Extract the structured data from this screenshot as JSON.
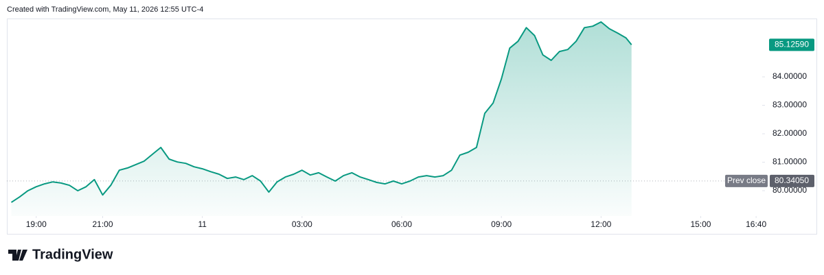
{
  "header_note": "Created with TradingView.com, May 11, 2026 12:55 UTC-4",
  "logo_text": "TradingView",
  "chart_data": {
    "type": "area",
    "color": "#089981",
    "x": [
      "18:15",
      "18:30",
      "18:45",
      "19:00",
      "19:15",
      "19:30",
      "19:45",
      "20:00",
      "20:15",
      "20:30",
      "20:45",
      "21:00",
      "21:15",
      "21:30",
      "21:45",
      "22:00",
      "22:15",
      "22:30",
      "22:45",
      "23:00",
      "23:15",
      "23:30",
      "23:45",
      "00:00",
      "00:15",
      "00:30",
      "00:45",
      "01:00",
      "01:15",
      "01:30",
      "01:45",
      "02:00",
      "02:15",
      "02:30",
      "02:45",
      "03:00",
      "03:15",
      "03:30",
      "03:45",
      "04:00",
      "04:15",
      "04:30",
      "04:45",
      "05:00",
      "05:15",
      "05:30",
      "05:45",
      "06:00",
      "06:15",
      "06:30",
      "06:45",
      "07:00",
      "07:15",
      "07:30",
      "07:45",
      "08:00",
      "08:15",
      "08:30",
      "08:45",
      "09:00",
      "09:15",
      "09:30",
      "09:45",
      "10:00",
      "10:15",
      "10:30",
      "10:45",
      "11:00",
      "11:15",
      "11:30",
      "11:45",
      "12:00",
      "12:15",
      "12:30",
      "12:45",
      "12:55"
    ],
    "values": [
      79.59,
      79.78,
      80.0,
      80.14,
      80.24,
      80.31,
      80.27,
      80.19,
      80.0,
      80.14,
      80.39,
      79.85,
      80.2,
      80.72,
      80.8,
      80.92,
      81.04,
      81.28,
      81.52,
      81.11,
      81.01,
      80.96,
      80.84,
      80.77,
      80.67,
      80.58,
      80.43,
      80.48,
      80.39,
      80.53,
      80.34,
      79.95,
      80.31,
      80.48,
      80.58,
      80.72,
      80.55,
      80.63,
      80.48,
      80.34,
      80.53,
      80.63,
      80.48,
      80.39,
      80.29,
      80.24,
      80.34,
      80.24,
      80.34,
      80.48,
      80.53,
      80.48,
      80.53,
      80.72,
      81.25,
      81.35,
      81.52,
      82.72,
      83.08,
      83.93,
      85.01,
      85.25,
      85.73,
      85.45,
      84.77,
      84.58,
      84.89,
      84.96,
      85.25,
      85.73,
      85.78,
      85.93,
      85.69,
      85.54,
      85.37,
      85.1259
    ],
    "last_label": "85.12590",
    "prev_close": {
      "name": "Prev close",
      "value": 80.3405,
      "label": "80.34050",
      "color": "#787b86"
    },
    "xlim": [
      "18:07",
      "16:51"
    ],
    "xticks": [
      "19:00",
      "21:00",
      {
        "value": "00:00",
        "label": "11"
      },
      "03:00",
      "06:00",
      "09:00",
      "12:00",
      "15:00",
      "16:40"
    ],
    "ylim": [
      79.11,
      86.05
    ],
    "yticks": [
      {
        "value": 80,
        "label": "80.00000"
      },
      {
        "value": 81,
        "label": "81.00000"
      },
      {
        "value": 82,
        "label": "82.00000"
      },
      {
        "value": 83,
        "label": "83.00000"
      },
      {
        "value": 84,
        "label": "84.00000"
      }
    ],
    "grid": false
  }
}
